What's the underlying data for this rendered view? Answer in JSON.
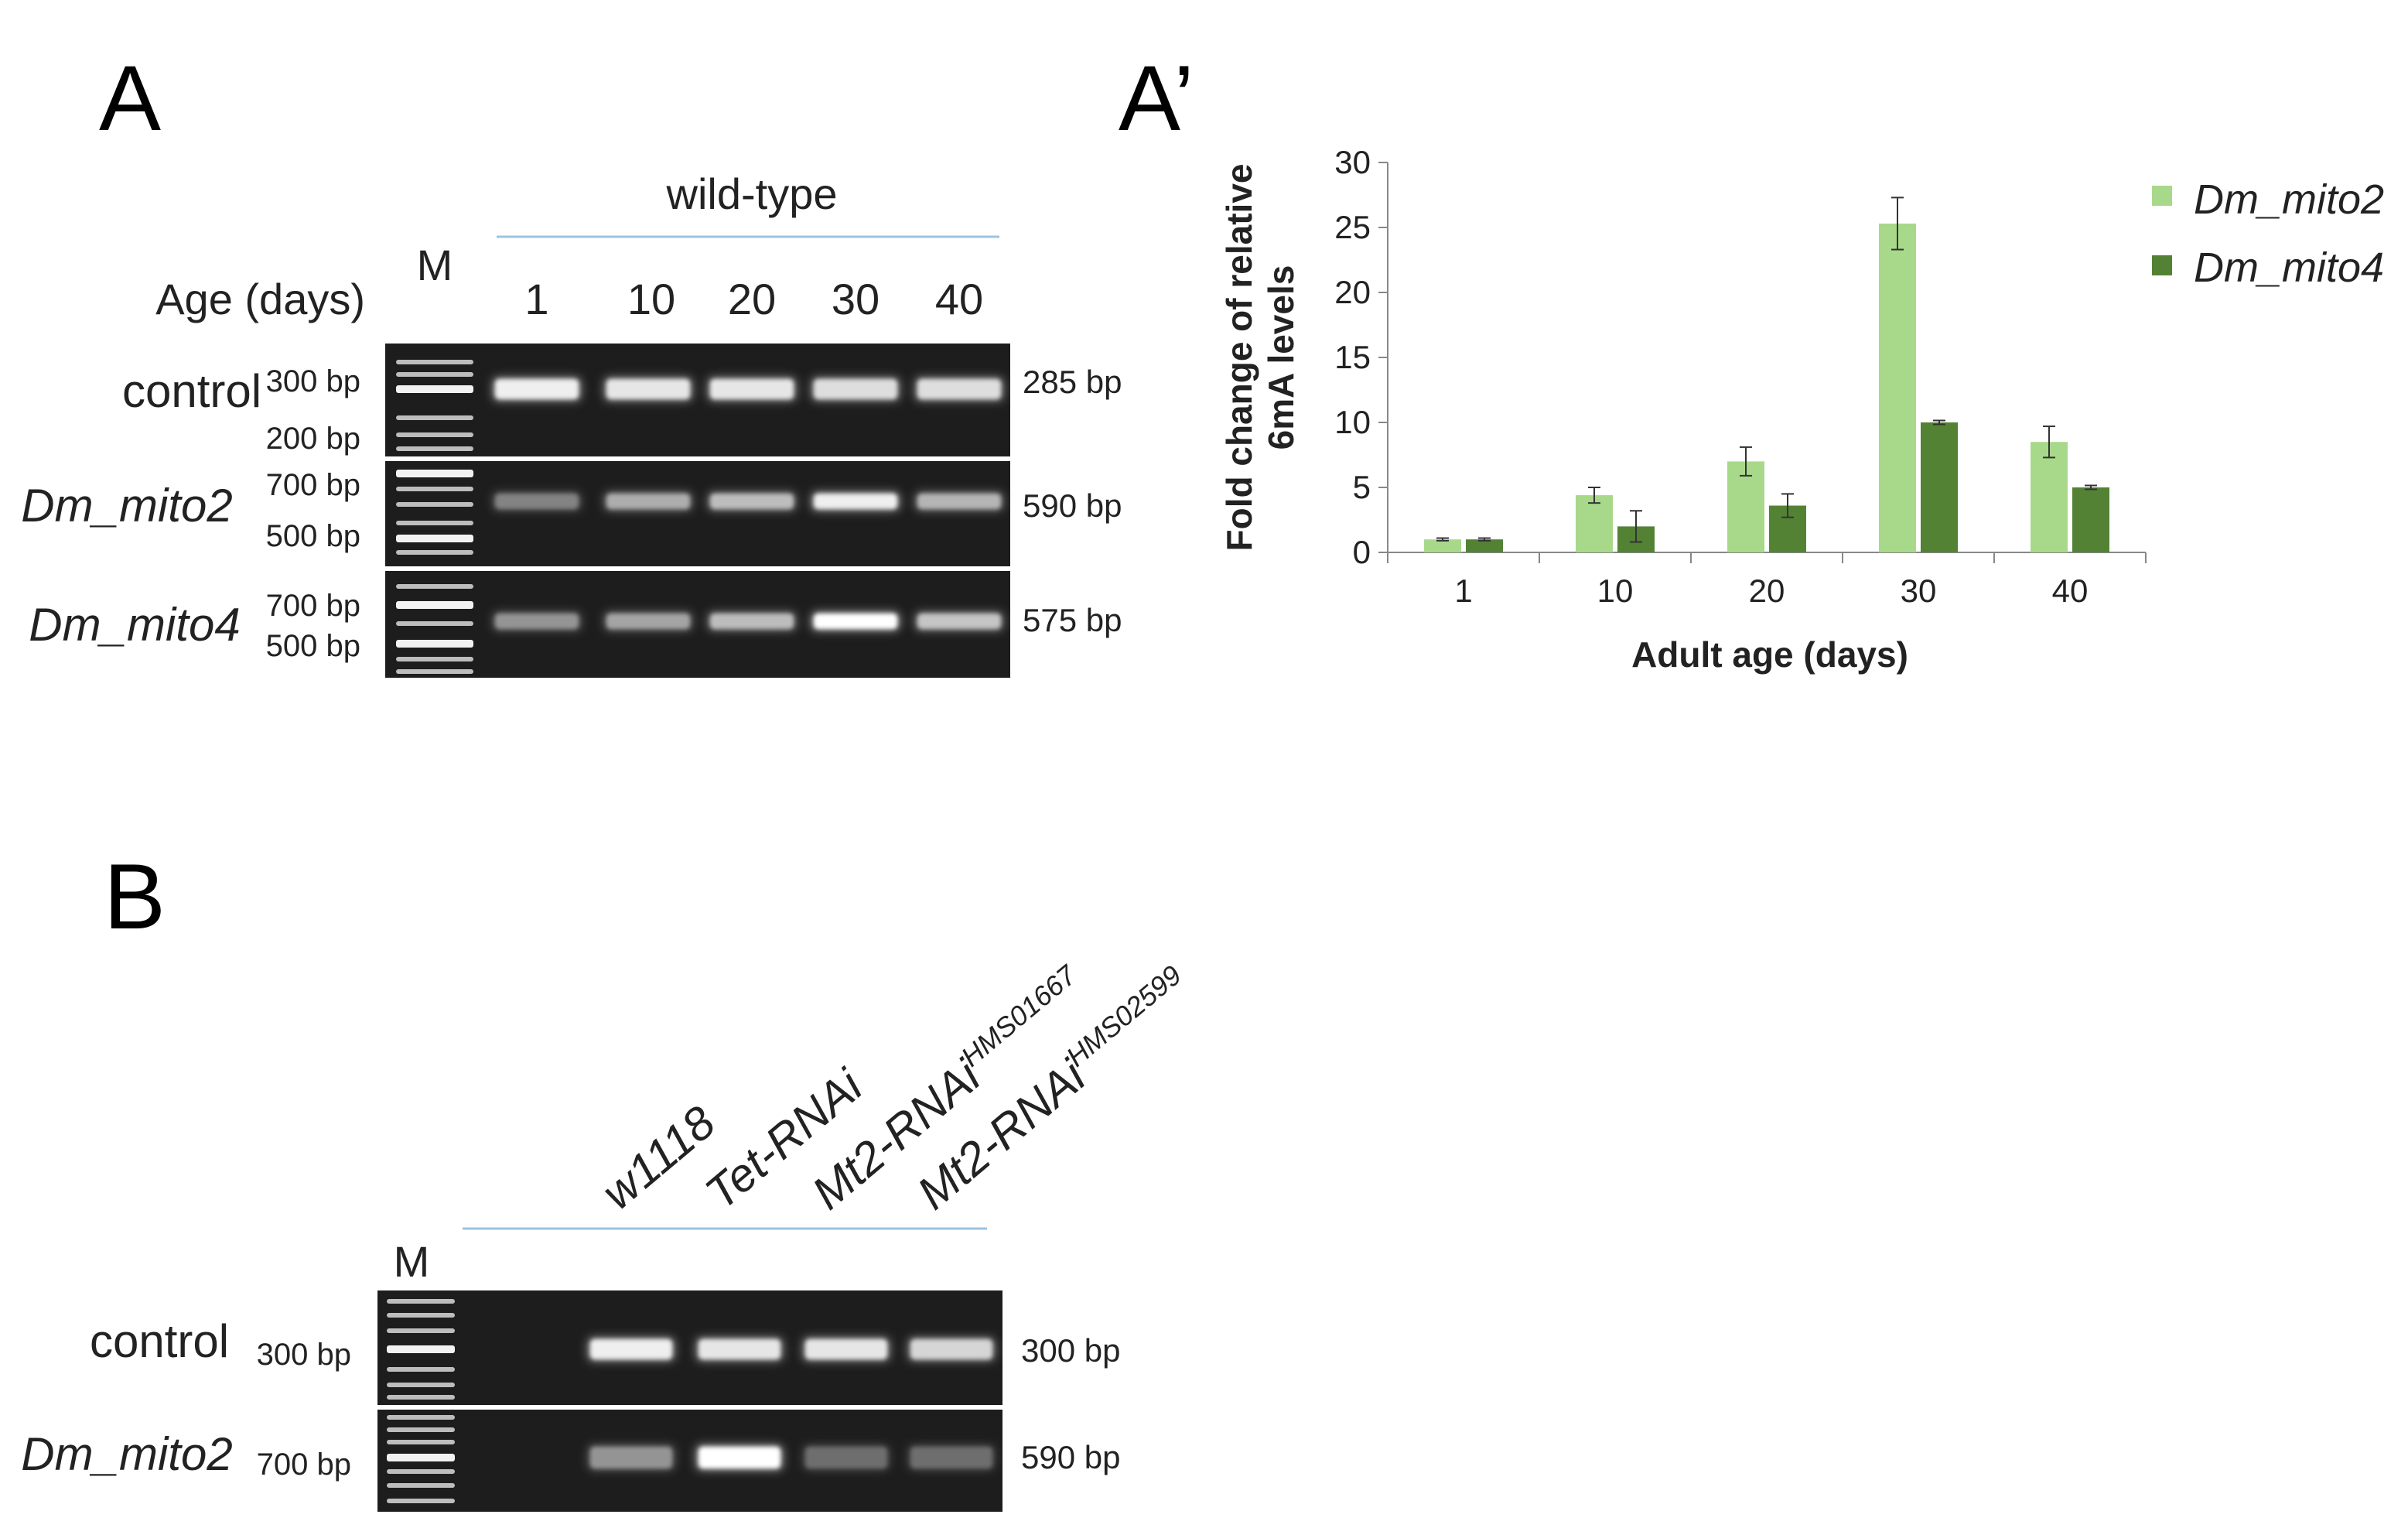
{
  "panel_labels": {
    "a": "A",
    "a_prime": "A’",
    "b": "B"
  },
  "panel_a": {
    "group_label": "wild-type",
    "age_label": "Age (days)",
    "marker_label": "M",
    "lanes": [
      "1",
      "10",
      "20",
      "30",
      "40"
    ],
    "rows": [
      {
        "name": "control",
        "markers": [
          "300 bp",
          "200 bp"
        ],
        "product": "285 bp",
        "intensities": [
          0.9,
          0.85,
          0.85,
          0.8,
          0.8
        ]
      },
      {
        "name": "Dm_mito2",
        "markers": [
          "700 bp",
          "500 bp"
        ],
        "product": "590 bp",
        "intensities": [
          0.25,
          0.5,
          0.6,
          0.9,
          0.55
        ]
      },
      {
        "name": "Dm_mito4",
        "markers": [
          "700 bp",
          "500 bp"
        ],
        "product": "575 bp",
        "intensities": [
          0.35,
          0.45,
          0.6,
          1.0,
          0.65
        ]
      }
    ]
  },
  "chart_data": {
    "type": "bar",
    "categories": [
      "1",
      "10",
      "20",
      "30",
      "40"
    ],
    "series": [
      {
        "name": "Dm_mito2",
        "color": "#a8d98a",
        "values": [
          1.0,
          4.4,
          7.0,
          25.3,
          8.5
        ],
        "errors": [
          0.1,
          0.6,
          1.1,
          2.0,
          1.2
        ]
      },
      {
        "name": "Dm_mito4",
        "color": "#548235",
        "values": [
          1.0,
          2.0,
          3.6,
          10.0,
          5.0
        ],
        "errors": [
          0.1,
          1.2,
          0.9,
          0.15,
          0.15
        ]
      }
    ],
    "xlabel": "Adult age (days)",
    "ylabel_line1": "Fold change of relative",
    "ylabel_line2": "6mA levels",
    "ylim": [
      0,
      30
    ],
    "yticks": [
      "0",
      "5",
      "10",
      "15",
      "20",
      "25",
      "30"
    ],
    "legend": "top-right",
    "grid": false
  },
  "panel_b": {
    "marker_label": "M",
    "lanes": [
      {
        "base": "w1118",
        "sup": ""
      },
      {
        "base": "Tet-RNAi",
        "sup": ""
      },
      {
        "base": "Mt2-RNAi",
        "sup": "HMS01667"
      },
      {
        "base": "Mt2-RNAi",
        "sup": "HMS02599"
      }
    ],
    "rows": [
      {
        "name": "control",
        "markers": [
          "300 bp"
        ],
        "product": "300 bp",
        "intensities": [
          0.9,
          0.85,
          0.85,
          0.75
        ]
      },
      {
        "name": "Dm_mito2",
        "markers": [
          "700 bp"
        ],
        "product": "590 bp",
        "intensities": [
          0.35,
          1.0,
          0.12,
          0.12
        ]
      }
    ]
  }
}
